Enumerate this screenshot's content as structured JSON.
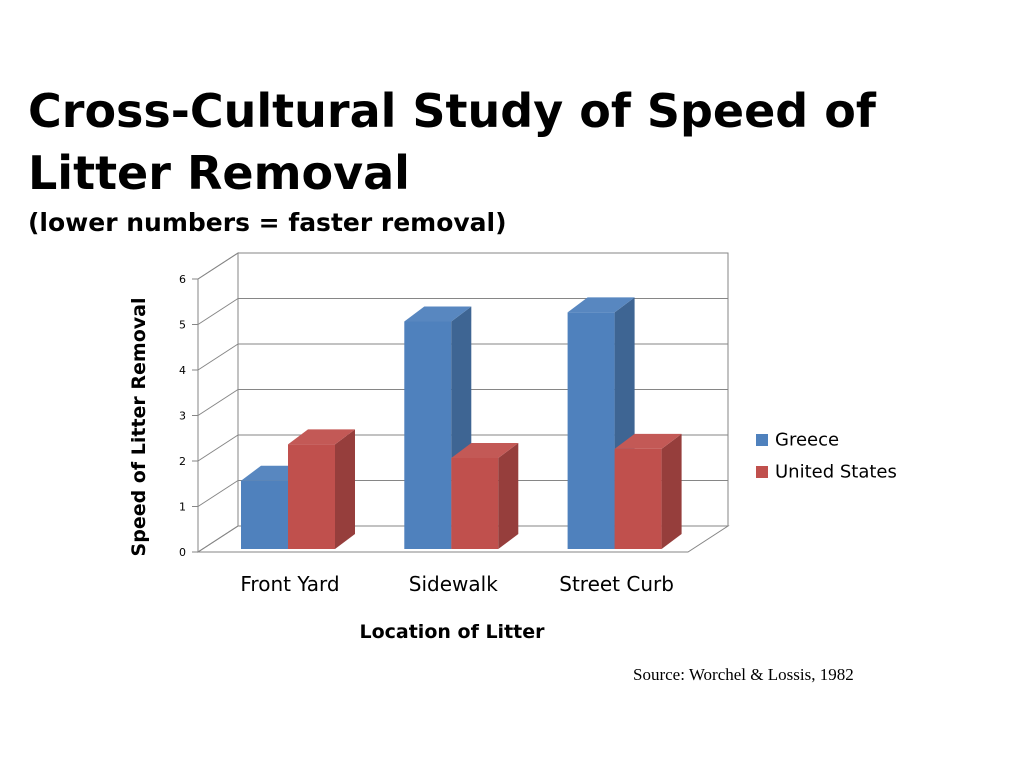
{
  "slide": {
    "title": "Cross-Cultural Study of Speed of Litter Removal",
    "subtitle": "(lower numbers = faster removal)",
    "source": "Source: Worchel & Lossis, 1982"
  },
  "chart_data": {
    "type": "bar",
    "style": "3d-clustered-column",
    "categories": [
      "Front Yard",
      "Sidewalk",
      "Street Curb"
    ],
    "series": [
      {
        "name": "Greece",
        "values": [
          1.5,
          5.0,
          5.2
        ],
        "color": "#4F81BD"
      },
      {
        "name": "United States",
        "values": [
          2.3,
          2.0,
          2.2
        ],
        "color": "#C0504D"
      }
    ],
    "xlabel": "Location of Litter",
    "ylabel": "Speed of Litter Removal",
    "ylim": [
      0,
      6
    ],
    "yticks": [
      "0",
      "1",
      "2",
      "3",
      "4",
      "5",
      "6"
    ],
    "grid": true,
    "legend": "right"
  }
}
